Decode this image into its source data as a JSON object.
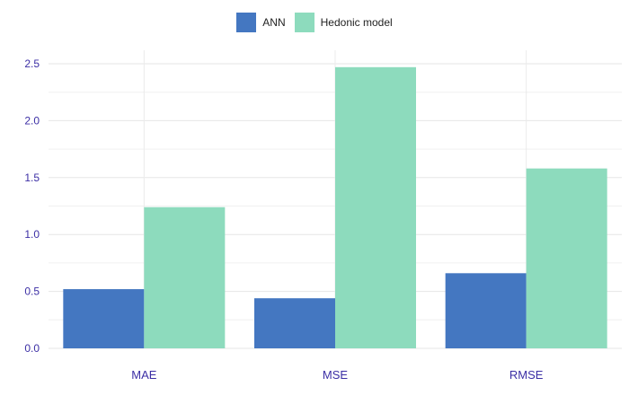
{
  "chart_data": {
    "type": "bar",
    "categories": [
      "MAE",
      "MSE",
      "RMSE"
    ],
    "series": [
      {
        "name": "ANN",
        "color": "#4477c1",
        "values": [
          0.52,
          0.44,
          0.66
        ]
      },
      {
        "name": "Hedonic model",
        "color": "#8ddbbd",
        "values": [
          1.24,
          2.47,
          1.58
        ]
      }
    ],
    "ylim": [
      0,
      2.5
    ],
    "yticks": [
      "0.0",
      "0.5",
      "1.0",
      "1.5",
      "2.0",
      "2.5"
    ],
    "title": "",
    "xlabel": "",
    "ylabel": "",
    "grid": true,
    "legend_position": "top-center"
  }
}
